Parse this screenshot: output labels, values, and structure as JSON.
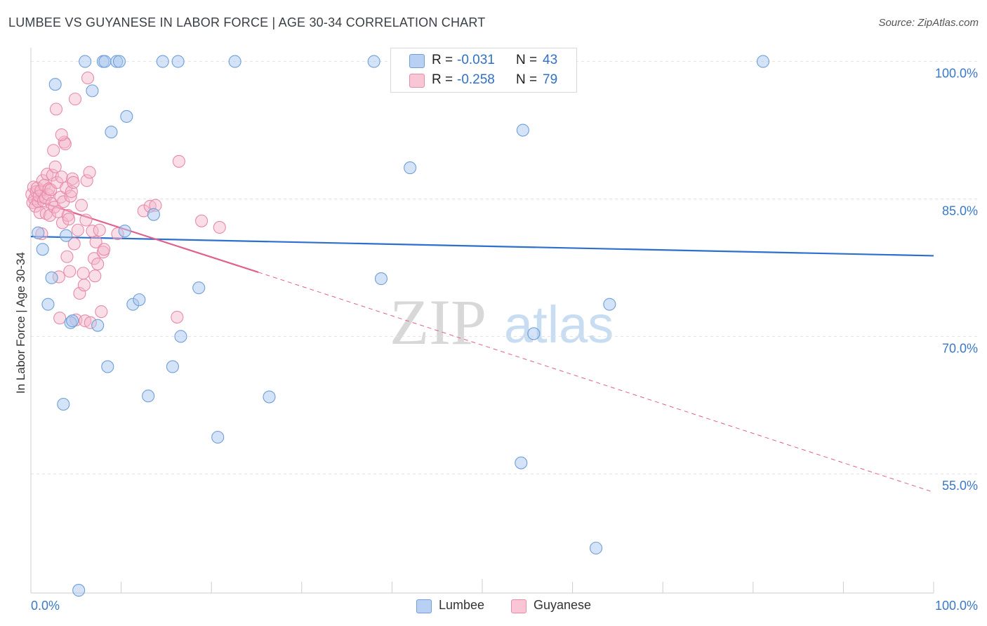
{
  "title": "LUMBEE VS GUYANESE IN LABOR FORCE | AGE 30-34 CORRELATION CHART",
  "source": "Source: ZipAtlas.com",
  "watermark": {
    "zip": "ZIP",
    "atlas": "atlas"
  },
  "colors": {
    "lumbee_fill": "#aac8f0",
    "lumbee_stroke": "#6f9fd8",
    "lumbee_line": "#2d6fcc",
    "guyanese_fill": "#f5b6c9",
    "guyanese_stroke": "#e88aa8",
    "guyanese_line": "#e0608e",
    "grid": "#e2e2e2",
    "axis_text": "#3a78c8"
  },
  "legend_top": {
    "rows": [
      {
        "r_label": "R =",
        "r_value": "-0.031",
        "n_label": "N =",
        "n_value": "43"
      },
      {
        "r_label": "R =",
        "r_value": "-0.258",
        "n_label": "N =",
        "n_value": "79"
      }
    ]
  },
  "legend_bottom": {
    "items": [
      "Lumbee",
      "Guyanese"
    ]
  },
  "chart_data": {
    "type": "scatter",
    "title": "LUMBEE VS GUYANESE IN LABOR FORCE | AGE 30-34 CORRELATION CHART",
    "xlabel": "",
    "ylabel": "In Labor Force | Age 30-34",
    "xlim": [
      0,
      100
    ],
    "ylim": [
      42,
      101.5
    ],
    "x_tick_labels": [
      "0.0%",
      "100.0%"
    ],
    "y_ticks": [
      55,
      70,
      85,
      100
    ],
    "y_tick_labels": [
      "55.0%",
      "70.0%",
      "85.0%",
      "100.0%"
    ],
    "grid": true,
    "legend_position": "top-center",
    "series": [
      {
        "name": "Lumbee",
        "R": -0.031,
        "N": 43,
        "trend": {
          "x": [
            0,
            100
          ],
          "y": [
            80.9,
            78.8
          ]
        },
        "points": [
          [
            0.8,
            81.3
          ],
          [
            1.3,
            79.5
          ],
          [
            1.9,
            73.5
          ],
          [
            2.3,
            76.4
          ],
          [
            2.7,
            97.5
          ],
          [
            3.6,
            62.6
          ],
          [
            3.9,
            81.0
          ],
          [
            4.4,
            71.5
          ],
          [
            4.6,
            71.7
          ],
          [
            5.3,
            42.3
          ],
          [
            6.0,
            100.0
          ],
          [
            6.8,
            96.8
          ],
          [
            7.4,
            71.2
          ],
          [
            8.0,
            100.0
          ],
          [
            8.2,
            100.0
          ],
          [
            8.5,
            66.7
          ],
          [
            8.9,
            92.3
          ],
          [
            9.5,
            100.0
          ],
          [
            9.8,
            100.0
          ],
          [
            10.4,
            81.5
          ],
          [
            10.6,
            94.0
          ],
          [
            11.3,
            73.5
          ],
          [
            12.0,
            74.0
          ],
          [
            13.0,
            63.5
          ],
          [
            13.6,
            83.3
          ],
          [
            14.6,
            100.0
          ],
          [
            15.7,
            66.7
          ],
          [
            16.3,
            100.0
          ],
          [
            16.6,
            70.0
          ],
          [
            18.6,
            75.3
          ],
          [
            20.7,
            59.0
          ],
          [
            22.6,
            100.0
          ],
          [
            26.4,
            63.4
          ],
          [
            38.0,
            100.0
          ],
          [
            38.8,
            76.3
          ],
          [
            42.0,
            88.4
          ],
          [
            48.0,
            100.0
          ],
          [
            54.3,
            56.2
          ],
          [
            54.5,
            92.5
          ],
          [
            55.7,
            70.3
          ],
          [
            62.6,
            46.9
          ],
          [
            64.1,
            73.5
          ],
          [
            81.1,
            100.0
          ]
        ]
      },
      {
        "name": "Guyanese",
        "R": -0.258,
        "N": 79,
        "trend": {
          "x": [
            0,
            25.2
          ],
          "y": [
            85.0,
            77.0
          ]
        },
        "trend_dashed": {
          "x": [
            25.2,
            100
          ],
          "y": [
            77.0,
            53.0
          ]
        },
        "points": [
          [
            0.1,
            85.5
          ],
          [
            0.2,
            84.6
          ],
          [
            0.3,
            86.3
          ],
          [
            0.4,
            85.0
          ],
          [
            0.5,
            84.2
          ],
          [
            0.6,
            85.8
          ],
          [
            0.7,
            86.2
          ],
          [
            0.8,
            84.7
          ],
          [
            0.9,
            85.3
          ],
          [
            1.0,
            83.5
          ],
          [
            1.1,
            85.9
          ],
          [
            1.2,
            81.2
          ],
          [
            1.3,
            87.0
          ],
          [
            1.4,
            84.8
          ],
          [
            1.5,
            86.5
          ],
          [
            1.6,
            85.1
          ],
          [
            1.7,
            83.4
          ],
          [
            1.8,
            87.7
          ],
          [
            1.9,
            85.5
          ],
          [
            2.0,
            86.1
          ],
          [
            2.1,
            83.2
          ],
          [
            2.2,
            86.0
          ],
          [
            2.3,
            84.5
          ],
          [
            2.4,
            87.6
          ],
          [
            2.5,
            90.3
          ],
          [
            2.6,
            84.1
          ],
          [
            2.7,
            88.5
          ],
          [
            2.8,
            94.8
          ],
          [
            2.9,
            86.8
          ],
          [
            3.0,
            83.6
          ],
          [
            3.1,
            76.5
          ],
          [
            3.2,
            72.0
          ],
          [
            3.3,
            85.2
          ],
          [
            3.4,
            87.4
          ],
          [
            3.5,
            82.4
          ],
          [
            3.6,
            84.7
          ],
          [
            3.7,
            91.2
          ],
          [
            3.8,
            91.0
          ],
          [
            3.9,
            86.2
          ],
          [
            4.0,
            78.7
          ],
          [
            4.1,
            83.2
          ],
          [
            4.2,
            82.8
          ],
          [
            4.3,
            77.1
          ],
          [
            4.4,
            85.3
          ],
          [
            4.5,
            85.8
          ],
          [
            4.6,
            87.2
          ],
          [
            4.7,
            86.8
          ],
          [
            4.8,
            80.1
          ],
          [
            4.9,
            95.9
          ],
          [
            5.0,
            71.8
          ],
          [
            5.2,
            81.6
          ],
          [
            5.4,
            74.7
          ],
          [
            5.6,
            84.3
          ],
          [
            5.8,
            76.9
          ],
          [
            5.9,
            75.6
          ],
          [
            6.0,
            71.7
          ],
          [
            6.1,
            82.7
          ],
          [
            6.2,
            87.0
          ],
          [
            6.3,
            98.2
          ],
          [
            6.5,
            87.9
          ],
          [
            6.6,
            71.5
          ],
          [
            6.8,
            81.5
          ],
          [
            7.0,
            78.5
          ],
          [
            7.1,
            76.6
          ],
          [
            7.2,
            80.3
          ],
          [
            7.4,
            77.9
          ],
          [
            7.6,
            81.6
          ],
          [
            7.8,
            72.7
          ],
          [
            8.0,
            79.2
          ],
          [
            8.1,
            79.5
          ],
          [
            9.6,
            81.2
          ],
          [
            12.5,
            83.7
          ],
          [
            13.2,
            84.2
          ],
          [
            13.8,
            84.3
          ],
          [
            16.2,
            72.1
          ],
          [
            16.4,
            89.1
          ],
          [
            18.9,
            82.6
          ],
          [
            20.9,
            81.9
          ],
          [
            3.4,
            92.0
          ]
        ]
      }
    ]
  }
}
